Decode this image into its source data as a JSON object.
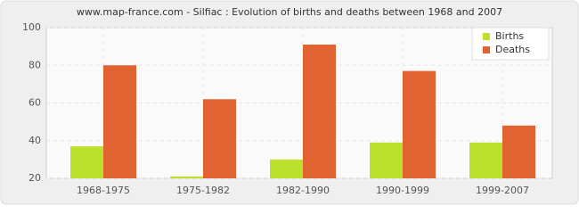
{
  "chart_data": {
    "type": "bar",
    "title": "www.map-france.com - Silfiac : Evolution of births and deaths between 1968 and 2007",
    "categories": [
      "1968-1975",
      "1975-1982",
      "1982-1990",
      "1990-1999",
      "1999-2007"
    ],
    "series": [
      {
        "name": "Births",
        "color": "#bde02a",
        "values": [
          37,
          21,
          30,
          39,
          39
        ]
      },
      {
        "name": "Deaths",
        "color": "#e06331",
        "values": [
          80,
          62,
          91,
          77,
          48
        ]
      }
    ],
    "ylim": [
      20,
      100
    ],
    "yticks": [
      20,
      40,
      60,
      80,
      100
    ],
    "grid": true,
    "legend": "top-right"
  }
}
